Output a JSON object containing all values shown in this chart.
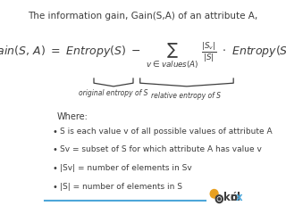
{
  "title": "The information gain, Gain(S,A) of an attribute A,",
  "title_fontsize": 7.5,
  "bg_color": "#ffffff",
  "text_color": "#3d3d3d",
  "bullet_items": [
    "S is each value v of all possible values of attribute A",
    "Sv = subset of S for which attribute A has value v",
    "|Sv| = number of elements in Sv",
    "|S| = number of elements in S"
  ],
  "where_label": "Where:",
  "label_original": "original entropy of S",
  "label_relative": "relative entropy of S",
  "footer_line_color": "#4da6d9",
  "knol_x_color": "#4da6d9",
  "circle_orange": "#e8a020",
  "circle_dark": "#3d3d3d"
}
